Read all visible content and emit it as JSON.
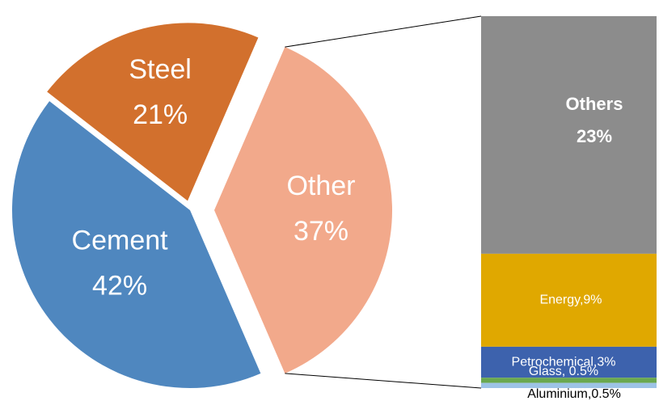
{
  "chart_data": {
    "type": "pie-of-bar",
    "categories": [
      "Cement",
      "Steel",
      "Other"
    ],
    "values": [
      42,
      21,
      37
    ],
    "value_labels": [
      "42%",
      "21%",
      "37%"
    ],
    "colors": [
      "#4f87bf",
      "#d2702d",
      "#f2a98b"
    ],
    "bar": {
      "segments": [
        {
          "label": "Others",
          "value": 23,
          "value_label": "23%",
          "color": "#8c8c8c"
        },
        {
          "value": 9,
          "value_label": "Energy,9%",
          "color": "#e0a800"
        },
        {
          "value": 3,
          "value_label": "Petrochemical,3%",
          "color": "#3d62ad"
        },
        {
          "value": 0.5,
          "value_label": "Glass, 0.5%",
          "color": "#6aa84f"
        },
        {
          "value": 0.5,
          "value_label": "Aluminium,0.5%",
          "color": "#9dc3e6"
        }
      ]
    }
  }
}
